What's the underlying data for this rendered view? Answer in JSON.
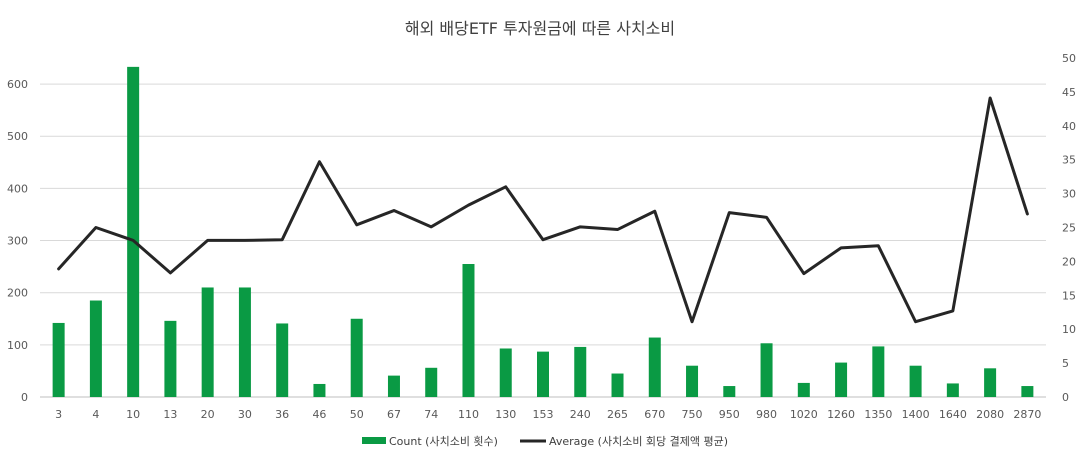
{
  "chart_data": {
    "type": "bar",
    "title": "해외 배당ETF 투자원금에 따른 사치소비",
    "categories": [
      "3",
      "4",
      "10",
      "13",
      "20",
      "30",
      "36",
      "46",
      "50",
      "67",
      "74",
      "110",
      "130",
      "153",
      "240",
      "265",
      "670",
      "750",
      "950",
      "980",
      "1020",
      "1260",
      "1350",
      "1400",
      "1640",
      "2080",
      "2870"
    ],
    "series": [
      {
        "name": "Count (사치소비 횟수)",
        "type": "bar",
        "axis": "left",
        "color": "#0a9a44",
        "values": [
          142,
          185,
          633,
          146,
          210,
          210,
          141,
          25,
          150,
          41,
          56,
          255,
          93,
          87,
          96,
          45,
          114,
          60,
          21,
          103,
          27,
          66,
          97,
          60,
          26,
          55,
          21
        ]
      },
      {
        "name": "Average (사치소비 회당 결제액 평균)",
        "type": "line",
        "axis": "right",
        "color": "#262626",
        "values": [
          18.9,
          25.0,
          23.1,
          18.3,
          23.1,
          23.1,
          23.2,
          34.7,
          25.4,
          27.5,
          25.1,
          28.3,
          31.0,
          23.2,
          25.1,
          24.7,
          27.4,
          11.1,
          27.2,
          26.5,
          18.2,
          22.0,
          22.3,
          11.1,
          12.7,
          44.1,
          27.0
        ]
      }
    ],
    "y_left": {
      "min": 0,
      "max": 650,
      "ticks": [
        0,
        100,
        200,
        300,
        400,
        500,
        600
      ]
    },
    "y_right": {
      "min": 0,
      "max": 50,
      "ticks": [
        0,
        5,
        10,
        15,
        20,
        25,
        30,
        35,
        40,
        45,
        50
      ]
    },
    "grid": true,
    "legend_position": "bottom"
  }
}
